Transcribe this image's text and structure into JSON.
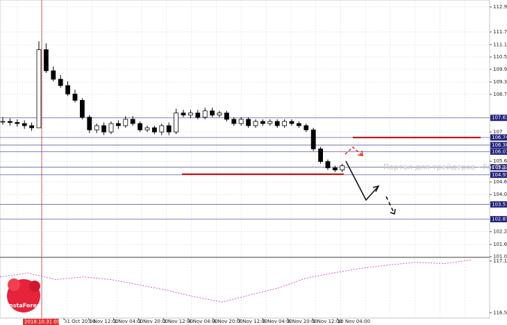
{
  "chart_data": [
    {
      "type": "candlestick",
      "open": [
        107.5,
        107.5,
        107.45,
        107.4,
        107.3,
        107.2,
        110.9,
        109.9,
        109.5,
        109.2,
        108.8,
        108.5,
        107.7,
        107.1,
        107.3,
        107.0,
        107.4,
        107.3,
        107.6,
        107.4,
        107.1,
        107.2,
        107.0,
        107.3,
        107.0,
        107.9,
        107.8,
        107.9,
        107.7,
        108.0,
        107.8,
        107.9,
        107.6,
        107.4,
        107.6,
        107.3,
        107.5,
        107.4,
        107.5,
        107.3,
        107.5,
        107.4,
        107.3,
        107.1,
        106.2,
        105.6,
        105.3,
        105.2
      ],
      "high": [
        107.7,
        107.65,
        107.6,
        107.55,
        107.45,
        111.3,
        111.2,
        110.1,
        109.7,
        109.4,
        109.0,
        108.6,
        107.8,
        107.4,
        107.45,
        107.5,
        107.55,
        107.75,
        107.75,
        107.5,
        107.3,
        107.3,
        107.4,
        107.45,
        108.1,
        108.05,
        108.05,
        108.05,
        108.15,
        108.15,
        108.0,
        108.0,
        107.7,
        107.7,
        107.7,
        107.6,
        107.6,
        107.6,
        107.6,
        107.6,
        107.6,
        107.5,
        107.4,
        107.2,
        106.3,
        105.7,
        105.4,
        105.5
      ],
      "low": [
        107.35,
        107.3,
        107.25,
        107.15,
        107.05,
        107.2,
        109.8,
        109.4,
        109.1,
        108.7,
        108.4,
        107.6,
        106.95,
        106.95,
        106.85,
        106.9,
        107.15,
        107.2,
        107.3,
        107.0,
        107.0,
        106.9,
        106.85,
        106.85,
        106.9,
        107.7,
        107.65,
        107.6,
        107.6,
        107.7,
        107.7,
        107.5,
        107.3,
        107.3,
        107.2,
        107.2,
        107.3,
        107.3,
        107.2,
        107.2,
        107.3,
        107.2,
        107.0,
        106.1,
        105.5,
        105.2,
        105.1,
        105.1
      ],
      "close": [
        107.5,
        107.45,
        107.4,
        107.3,
        107.2,
        110.9,
        109.9,
        109.5,
        109.2,
        108.8,
        108.5,
        107.7,
        107.1,
        107.3,
        107.0,
        107.4,
        107.3,
        107.6,
        107.4,
        107.1,
        107.2,
        107.0,
        107.3,
        107.0,
        107.9,
        107.8,
        107.9,
        107.7,
        108.0,
        107.8,
        107.9,
        107.6,
        107.4,
        107.6,
        107.3,
        107.5,
        107.4,
        107.5,
        107.3,
        107.5,
        107.4,
        107.3,
        107.1,
        106.2,
        105.6,
        105.3,
        105.2,
        105.4
      ],
      "ylim": [
        101.08,
        113.254
      ],
      "yticks": [
        112.925,
        111.74,
        111.14,
        110.555,
        109.97,
        109.37,
        108.785,
        107.0,
        105.615,
        104.63,
        104.035,
        102.275,
        101.67,
        101.09
      ],
      "levels": [
        107.67,
        106.74,
        106.38,
        106.07,
        105.33,
        104.97,
        103.57,
        102.87
      ],
      "red_levels": [
        106.74,
        105.0
      ],
      "time_labels": [
        "31 Oct 20:00",
        "1 Nov 12:00",
        "2 Nov 04:00",
        "2 Nov 20:00",
        "3 Nov 12:00",
        "4 Nov 04:00",
        "4 Nov 20:00",
        "7 Nov 12:00",
        "8 Nov 04:00",
        "8 Nov 20:00",
        "9 Nov 12:00",
        "10 Nov 04:00"
      ],
      "crosshair_label": "2018.10.31 05:00",
      "watermark": "Портал для трейдеров - ForTrader.org",
      "logo": "InstaForex"
    },
    {
      "type": "line",
      "color": "#d040c0",
      "values": [
        116.956,
        116.998,
        116.928,
        116.956,
        116.928,
        116.872,
        116.816,
        116.745,
        116.689,
        116.766,
        116.837,
        116.942,
        116.998,
        117.048,
        117.083,
        117.111,
        117.097,
        117.139
      ],
      "ylim": [
        116.535,
        117.153
      ],
      "yticks": [
        117.125,
        116.577
      ]
    }
  ]
}
